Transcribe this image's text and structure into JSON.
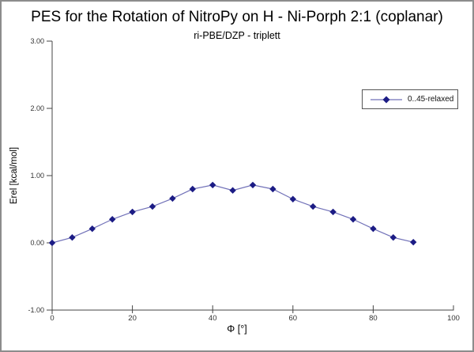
{
  "chart_data": {
    "type": "line",
    "title": "PES for the Rotation of NitroPy on H - Ni-Porph 2:1 (coplanar)",
    "subtitle": "ri-PBE/DZP - triplett",
    "xlabel": "Φ [°]",
    "ylabel": "Erel [kcal/mol]",
    "xlim": [
      0,
      100
    ],
    "ylim": [
      -1.0,
      3.0
    ],
    "grid": false,
    "x_ticks": [
      {
        "value": 0,
        "label": "0"
      },
      {
        "value": 20,
        "label": "20"
      },
      {
        "value": 40,
        "label": "40"
      },
      {
        "value": 60,
        "label": "60"
      },
      {
        "value": 80,
        "label": "80"
      },
      {
        "value": 100,
        "label": "100"
      }
    ],
    "y_ticks": [
      {
        "value": 3.0,
        "label": "3.00"
      },
      {
        "value": 2.0,
        "label": "2.00"
      },
      {
        "value": 1.0,
        "label": "1.00"
      },
      {
        "value": 0.0,
        "label": "0.00"
      },
      {
        "value": -1.0,
        "label": "-1.00"
      }
    ],
    "legend": {
      "position": "upper-right"
    },
    "series": [
      {
        "name": "0..45-relaxed",
        "marker": "diamond",
        "marker_color": "#1c1c85",
        "line_color": "#7171b8",
        "x": [
          0,
          5,
          10,
          15,
          20,
          25,
          30,
          35,
          40,
          45,
          50,
          55,
          60,
          65,
          70,
          75,
          80,
          85,
          90
        ],
        "y": [
          0.0,
          0.08,
          0.21,
          0.35,
          0.46,
          0.54,
          0.66,
          0.8,
          0.86,
          0.78,
          0.86,
          0.8,
          0.65,
          0.54,
          0.46,
          0.35,
          0.21,
          0.08,
          0.01
        ]
      }
    ]
  },
  "colors": {
    "axis": "#444444",
    "tick_text": "#333333",
    "border": "#8c8c8c",
    "background": "#ffffff"
  }
}
